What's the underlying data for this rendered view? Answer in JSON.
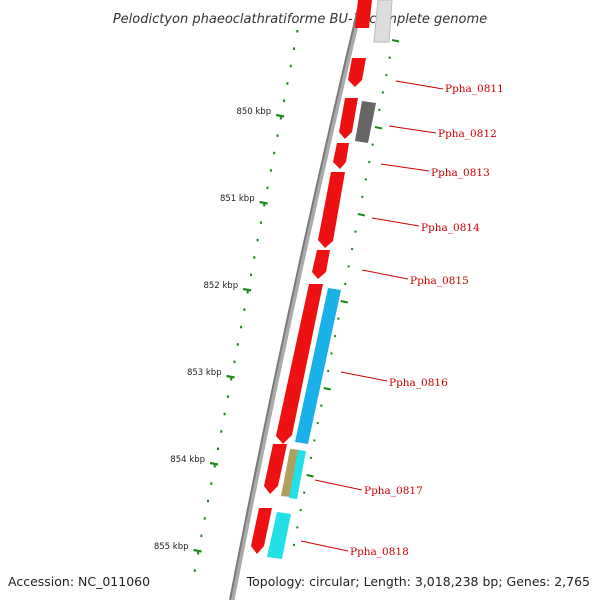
{
  "title": "Pelodictyon phaeoclathratiforme BU-1, complete genome",
  "accession": "Accession: NC_011060",
  "summary": "Topology: circular; Length: 3,018,238 bp; Genes: 2,765",
  "kbp_ticks": [
    {
      "label": "850 kbp"
    },
    {
      "label": "851 kbp"
    },
    {
      "label": "852 kbp"
    },
    {
      "label": "853 kbp"
    },
    {
      "label": "854 kbp"
    },
    {
      "label": "855 kbp"
    }
  ],
  "gene_labels": [
    "Ppha_0811",
    "Ppha_0812",
    "Ppha_0813",
    "Ppha_0814",
    "Ppha_0815",
    "Ppha_0816",
    "Ppha_0817",
    "Ppha_0818"
  ],
  "colors": {
    "backbone": "#888888",
    "gene_red": "#ee0000",
    "gene_blue": "#1ab0e8",
    "gene_cyan": "#22e0e6",
    "gene_olive": "#b0a060",
    "gene_gray": "#666666",
    "gene_light": "#cccccc",
    "tick_green": "#1a8a1a",
    "label_red": "#cc0000"
  }
}
